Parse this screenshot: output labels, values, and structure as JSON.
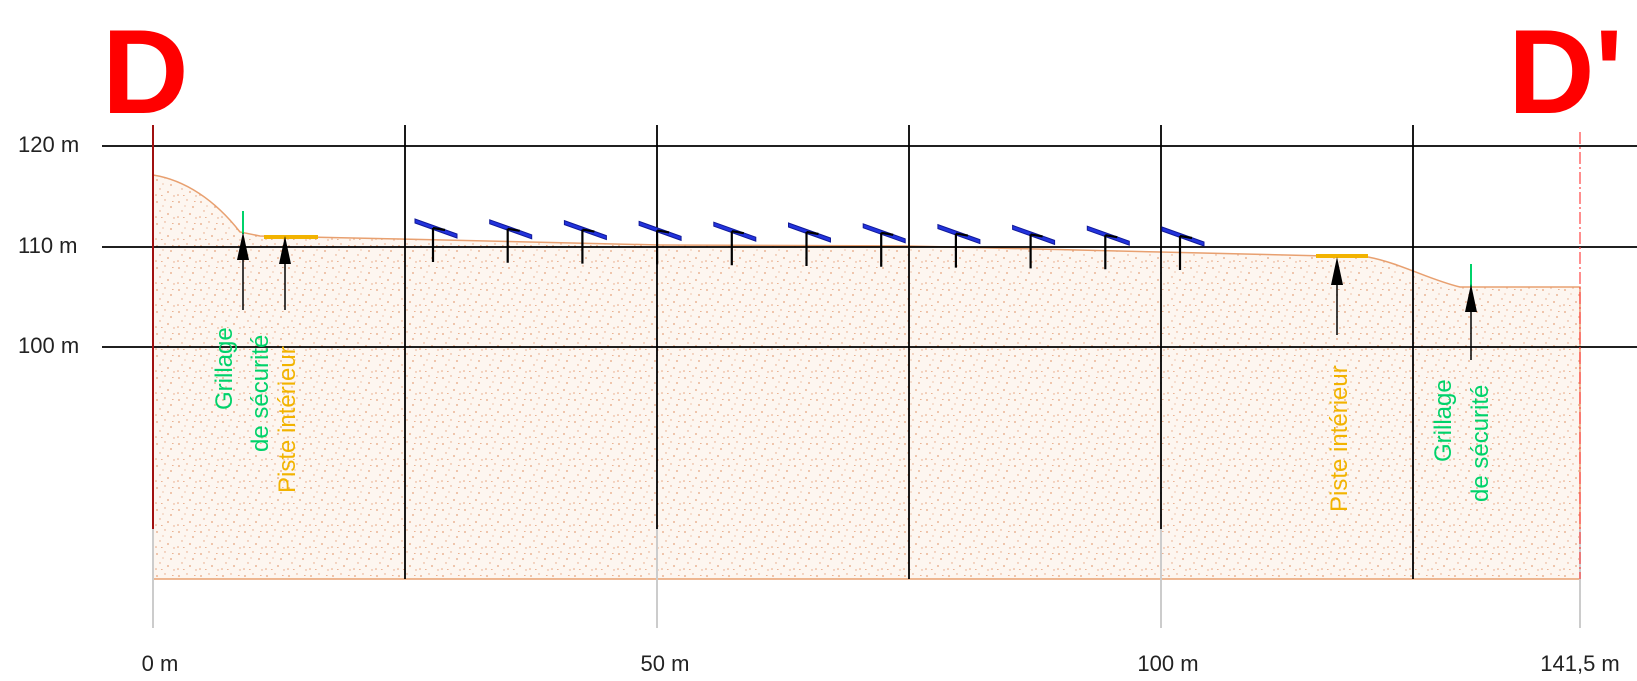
{
  "section": {
    "start_marker": "D",
    "end_marker": "D'",
    "elevation_labels": [
      "120 m",
      "110 m",
      "100 m"
    ],
    "distance_labels": [
      "0 m",
      "50 m",
      "100 m",
      "141,5 m"
    ]
  },
  "annotations": {
    "fence_left": [
      "Grillage",
      "de sécurité"
    ],
    "track_left": "Piste intérieur",
    "track_right": "Piste intérieur",
    "fence_right": [
      "Grillage",
      "de sécurité"
    ]
  },
  "colors": {
    "marker": "#ff0000",
    "fence": "#00d26a",
    "track": "#f2b300",
    "panel": "#2233dd",
    "ground_outline": "#e8a070",
    "ground_fill": "#fdf6f0",
    "ground_speckle": "#e6a27c",
    "grid": "#000000",
    "left_edge": "#a01010"
  },
  "panel_count": 11
}
